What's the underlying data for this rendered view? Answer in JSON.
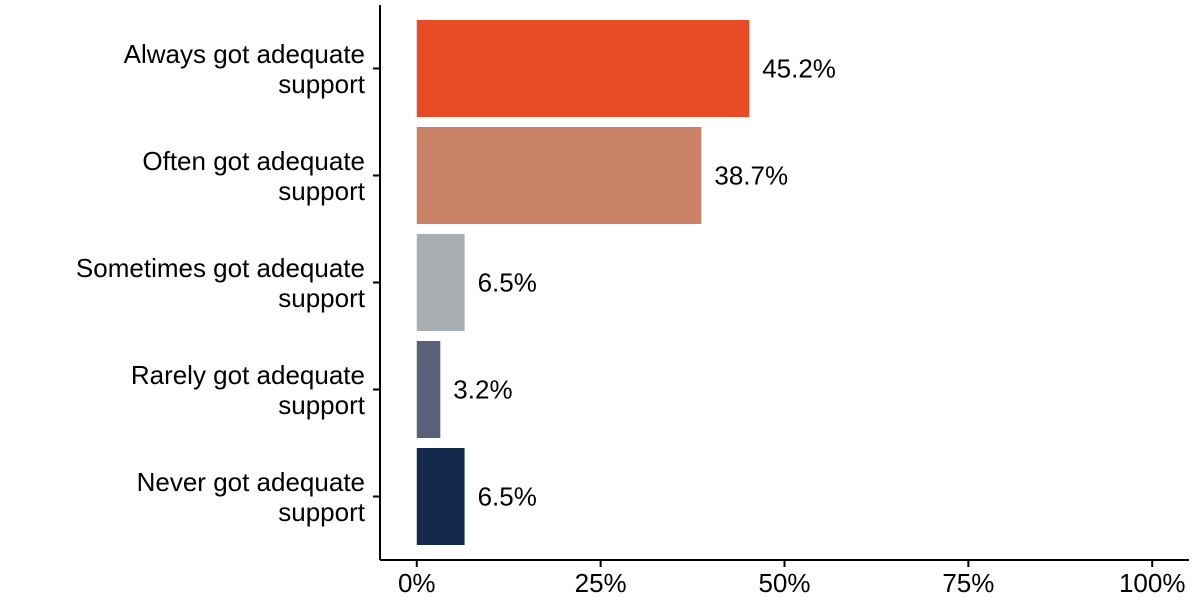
{
  "chart_data": {
    "type": "bar",
    "orientation": "horizontal",
    "categories": [
      "Always got adequate\nsupport",
      "Often got adequate\nsupport",
      "Sometimes got adequate\nsupport",
      "Rarely got adequate\nsupport",
      "Never got adequate\nsupport"
    ],
    "values": [
      45.2,
      38.7,
      6.5,
      3.2,
      6.5
    ],
    "value_labels": [
      "45.2%",
      "38.7%",
      "6.5%",
      "3.2%",
      "6.5%"
    ],
    "colors": [
      "#e84c26",
      "#cb8368",
      "#a8adb1",
      "#596078",
      "#142a4c"
    ],
    "xlim": [
      -5,
      105
    ],
    "xticks": [
      {
        "value": 0,
        "label": "0%"
      },
      {
        "value": 25,
        "label": "25%"
      },
      {
        "value": 50,
        "label": "50%"
      },
      {
        "value": 75,
        "label": "75%"
      },
      {
        "value": 100,
        "label": "100%"
      }
    ],
    "grid": false
  }
}
